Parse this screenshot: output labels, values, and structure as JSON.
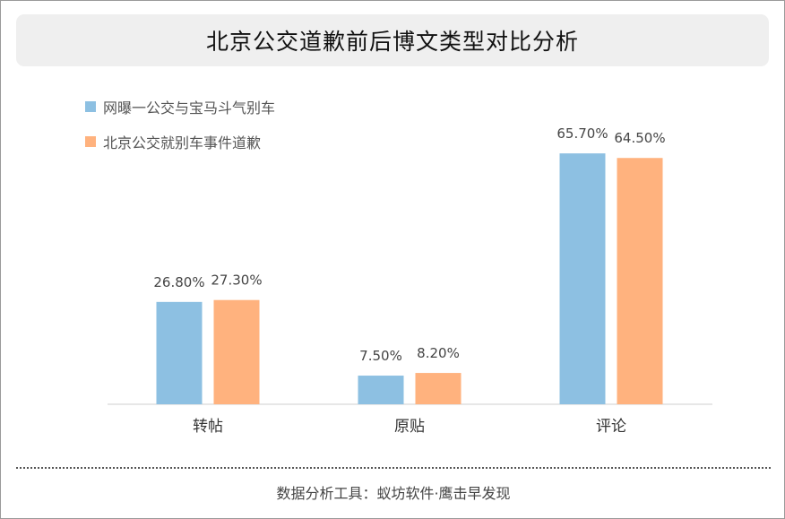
{
  "header": {
    "title": "北京公交道歉前后博文类型对比分析"
  },
  "colors": {
    "series1": "#8dc0e2",
    "series2": "#ffb27e",
    "axis": "#cfcfcf",
    "text": "#444444"
  },
  "chart_data": {
    "type": "bar",
    "title": "北京公交道歉前后博文类型对比分析",
    "categories": [
      "转帖",
      "原贴",
      "评论"
    ],
    "series": [
      {
        "name": "网曝一公交与宝马斗气别车",
        "values": [
          26.8,
          7.5,
          65.7
        ],
        "labels": [
          "26.80%",
          "7.50%",
          "65.70%"
        ],
        "color": "#8dc0e2"
      },
      {
        "name": "北京公交就别车事件道歉",
        "values": [
          27.3,
          8.2,
          64.5
        ],
        "labels": [
          "27.30%",
          "8.20%",
          "64.50%"
        ],
        "color": "#ffb27e"
      }
    ],
    "ylim": [
      0,
      100
    ],
    "grid": false,
    "legend_position": "top-left",
    "xlabel": "",
    "ylabel": ""
  },
  "footer": {
    "text": "数据分析工具：蚁坊软件·鹰击早发现"
  }
}
